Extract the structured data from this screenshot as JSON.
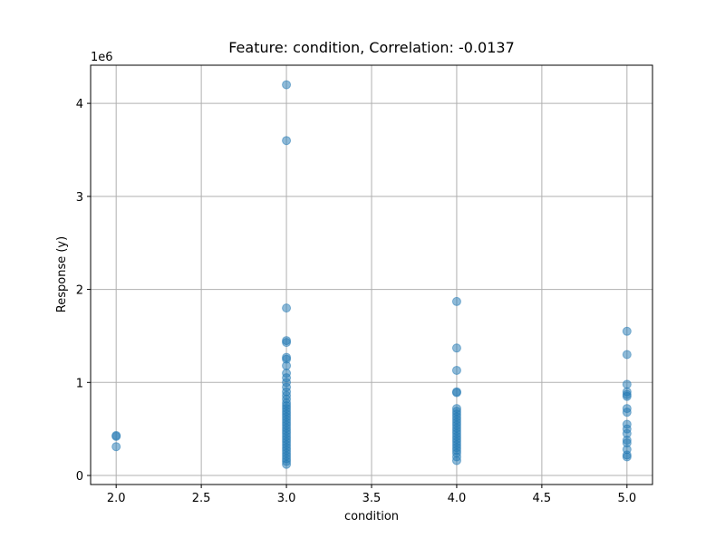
{
  "chart_data": {
    "type": "scatter",
    "title": "Feature: condition, Correlation: -0.0137",
    "x_label": "condition",
    "y_label": "Response (y)",
    "y_offset_label": "1e6",
    "color": "#1f77b4",
    "grid": true,
    "xlim": [
      1.85,
      5.15
    ],
    "ylim": [
      -97000,
      4410000
    ],
    "xticks": [
      {
        "value": 2,
        "label": "2.0"
      },
      2.5,
      {
        "value": 3,
        "label": "3.0"
      },
      3.5,
      {
        "value": 4,
        "label": "4.0"
      },
      4.5,
      {
        "value": 5,
        "label": "5.0"
      }
    ],
    "yticks": [
      {
        "value": 0,
        "label": "0"
      },
      {
        "value": 1000000,
        "label": "1"
      },
      {
        "value": 2000000,
        "label": "2"
      },
      {
        "value": 3000000,
        "label": "3"
      },
      {
        "value": 4000000,
        "label": "4"
      }
    ],
    "x": [
      2,
      2,
      2,
      3,
      3,
      3,
      3,
      3,
      3,
      3,
      3,
      3,
      3,
      3,
      3,
      3,
      3,
      3,
      3,
      3,
      3,
      3,
      3,
      3,
      3,
      3,
      3,
      3,
      3,
      3,
      3,
      3,
      3,
      3,
      3,
      3,
      3,
      3,
      3,
      3,
      3,
      4,
      4,
      4,
      4,
      4,
      4,
      4,
      4,
      4,
      4,
      4,
      4,
      4,
      4,
      4,
      4,
      4,
      4,
      4,
      4,
      4,
      4,
      4,
      4,
      5,
      5,
      5,
      5,
      5,
      5,
      5,
      5,
      5,
      5,
      5,
      5,
      5,
      5,
      5,
      5
    ],
    "y": [
      420000,
      430000,
      310000,
      4200000,
      3600000,
      1800000,
      1450000,
      1430000,
      1270000,
      1250000,
      1180000,
      1100000,
      1050000,
      1000000,
      950000,
      900000,
      860000,
      820000,
      780000,
      750000,
      720000,
      690000,
      660000,
      630000,
      600000,
      570000,
      540000,
      510000,
      480000,
      450000,
      420000,
      390000,
      360000,
      330000,
      300000,
      270000,
      240000,
      210000,
      180000,
      150000,
      120000,
      1870000,
      1370000,
      1130000,
      900000,
      890000,
      720000,
      690000,
      660000,
      630000,
      600000,
      570000,
      540000,
      510000,
      480000,
      450000,
      420000,
      390000,
      360000,
      330000,
      300000,
      270000,
      240000,
      200000,
      160000,
      1550000,
      1300000,
      980000,
      900000,
      870000,
      850000,
      720000,
      680000,
      550000,
      500000,
      450000,
      380000,
      350000,
      280000,
      220000,
      200000
    ]
  }
}
